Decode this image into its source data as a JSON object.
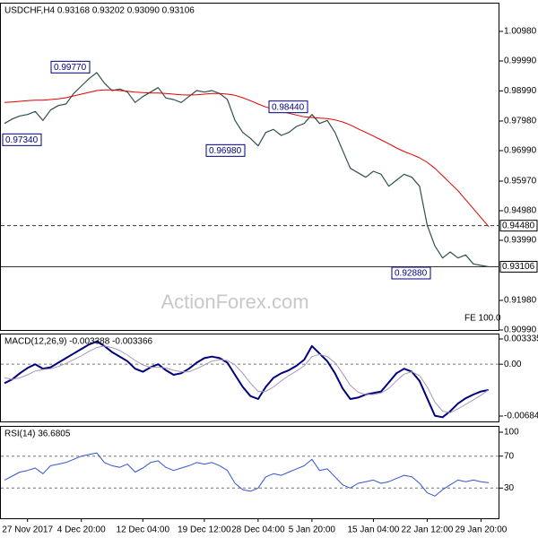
{
  "chart_data": [
    {
      "type": "line",
      "title": "USDCHF,H4  0.93168 0.93202 0.93090 0.93106",
      "categories": [
        null,
        null,
        null,
        "27 Nov 2017",
        null,
        null,
        null,
        null,
        null,
        null,
        "4 Dec 20:00",
        null,
        null,
        null,
        null,
        null,
        null,
        null,
        "12 Dec 04:00",
        null,
        null,
        null,
        null,
        null,
        null,
        null,
        "19 Dec 12:00",
        null,
        null,
        null,
        null,
        null,
        null,
        "28 Dec 04:00",
        null,
        null,
        null,
        null,
        null,
        null,
        "5 Jan 20:00",
        null,
        null,
        null,
        null,
        null,
        null,
        null,
        "15 Jan 04:00",
        null,
        null,
        null,
        null,
        null,
        null,
        "22 Jan 12:00",
        null,
        null,
        null,
        null,
        null,
        null,
        "29 Jan 20:00",
        null
      ],
      "series": [
        {
          "color": "#2f4f4f",
          "width": 1.2,
          "values": [
            0.979,
            0.9805,
            0.9815,
            0.982,
            0.983,
            0.98,
            0.9835,
            0.985,
            0.9855,
            0.989,
            0.9915,
            0.994,
            0.996,
            0.9925,
            0.99,
            0.9905,
            0.9895,
            0.986,
            0.988,
            0.9895,
            0.991,
            0.9875,
            0.987,
            0.986,
            0.988,
            0.99,
            0.9895,
            0.99,
            0.989,
            0.987,
            0.98,
            0.976,
            0.974,
            0.9715,
            0.976,
            0.977,
            0.975,
            0.976,
            0.978,
            0.979,
            0.982,
            0.979,
            0.98,
            0.976,
            0.97,
            0.964,
            0.9625,
            0.961,
            0.963,
            0.962,
            0.958,
            0.96,
            0.962,
            0.961,
            0.958,
            0.945,
            0.938,
            0.934,
            0.936,
            0.934,
            0.935,
            0.932,
            0.9315,
            0.93106
          ]
        },
        {
          "color": "#e00000",
          "width": 1,
          "values": [
            0.986,
            0.9862,
            0.9864,
            0.9866,
            0.9868,
            0.9868,
            0.987,
            0.9872,
            0.9876,
            0.9882,
            0.9888,
            0.9894,
            0.99,
            0.9902,
            0.9902,
            0.99,
            0.9898,
            0.9895,
            0.9893,
            0.9892,
            0.9892,
            0.989,
            0.9888,
            0.9886,
            0.9885,
            0.9886,
            0.9888,
            0.989,
            0.989,
            0.9888,
            0.9884,
            0.9876,
            0.9866,
            0.9855,
            0.9845,
            0.9838,
            0.983,
            0.9824,
            0.9818,
            0.9812,
            0.981,
            0.9808,
            0.9806,
            0.9802,
            0.9795,
            0.9785,
            0.9772,
            0.976,
            0.9748,
            0.9735,
            0.9722,
            0.9708,
            0.9696,
            0.9686,
            0.9675,
            0.966,
            0.964,
            0.9615,
            0.959,
            0.9565,
            0.9535,
            0.9505,
            0.9475,
            0.9445
          ]
        }
      ],
      "ylim": [
        0.9099,
        1.0194
      ],
      "yticks": [
        {
          "value": 1.0098,
          "label": "1.00980"
        },
        {
          "value": 0.9999,
          "label": "0.99990"
        },
        {
          "value": 0.9899,
          "label": "0.98990"
        },
        {
          "value": 0.9798,
          "label": "0.97980"
        },
        {
          "value": 0.9699,
          "label": "0.96990"
        },
        {
          "value": 0.9597,
          "label": "0.95970"
        },
        {
          "value": 0.9498,
          "label": "0.94980"
        },
        {
          "value": 0.9399,
          "label": "0.93990"
        },
        {
          "value": 0.9198,
          "label": "0.91980"
        },
        {
          "value": 0.9099,
          "label": "0.90990"
        }
      ],
      "grid": false,
      "hlines": [
        {
          "value": 0.9448,
          "label": "0.94480",
          "style": "dashed"
        },
        {
          "value": 0.93106,
          "label": "0.93106",
          "style": "solid"
        }
      ],
      "annotations": [
        {
          "value": 0.9734,
          "label": "0.97340"
        },
        {
          "value": 0.9977,
          "label": "0.99770"
        },
        {
          "value": 0.9698,
          "label": "0.96980"
        },
        {
          "value": 0.9844,
          "label": "0.98440"
        },
        {
          "value": 0.9288,
          "label": "0.92880"
        }
      ],
      "note": "FE 100.0",
      "watermark": "ActionForex.com"
    },
    {
      "type": "line",
      "title": "MACD(12,26,9) -0.003388 -0.003366",
      "series": [
        {
          "color": "#000080",
          "width": 2,
          "values": [
            -0.0025,
            -0.002,
            -0.0012,
            -0.0005,
            0.0,
            -0.0006,
            -0.0004,
            0.0002,
            0.0008,
            0.0014,
            0.002,
            0.0026,
            0.003,
            0.0024,
            0.0016,
            0.001,
            0.0004,
            -0.0006,
            -0.001,
            -0.0004,
            0.0,
            -0.0008,
            -0.0014,
            -0.0012,
            -0.0006,
            0.0002,
            0.0008,
            0.001,
            0.0008,
            0.0002,
            -0.0014,
            -0.003,
            -0.0042,
            -0.0046,
            -0.003,
            -0.0018,
            -0.0012,
            -0.0008,
            -0.0002,
            0.0006,
            0.0024,
            0.0014,
            0.0004,
            -0.0012,
            -0.0032,
            -0.0046,
            -0.0044,
            -0.004,
            -0.0038,
            -0.0036,
            -0.0024,
            -0.0012,
            -0.0006,
            -0.001,
            -0.0022,
            -0.0045,
            -0.0068,
            -0.007,
            -0.0062,
            -0.0052,
            -0.0045,
            -0.004,
            -0.0036,
            -0.003388
          ]
        },
        {
          "color": "#a898b8",
          "width": 1,
          "values": [
            -0.0018,
            -0.002,
            -0.0018,
            -0.0014,
            -0.0009,
            -0.0007,
            -0.0006,
            -0.0003,
            0.0001,
            0.0006,
            0.0011,
            0.0017,
            0.0022,
            0.0024,
            0.0022,
            0.0018,
            0.0012,
            0.0005,
            -0.0001,
            -0.0004,
            -0.0004,
            -0.0005,
            -0.0008,
            -0.001,
            -0.001,
            -0.0006,
            -0.0001,
            0.0004,
            0.0006,
            0.0005,
            -0.0001,
            -0.0012,
            -0.0025,
            -0.0036,
            -0.0036,
            -0.003,
            -0.0022,
            -0.0015,
            -0.0009,
            -0.0002,
            0.001,
            0.0013,
            0.001,
            0.0002,
            -0.0012,
            -0.0028,
            -0.0037,
            -0.004,
            -0.004,
            -0.0038,
            -0.0032,
            -0.0022,
            -0.0013,
            -0.001,
            -0.0015,
            -0.003,
            -0.005,
            -0.0062,
            -0.0064,
            -0.0059,
            -0.0053,
            -0.0047,
            -0.0041,
            -0.003366
          ]
        }
      ],
      "ylim": [
        -0.006843,
        0.003335
      ],
      "yticks": [
        0.003335,
        {
          "value": 0,
          "label": "0.00"
        },
        -0.006843
      ],
      "grid": true
    },
    {
      "type": "line",
      "title": "RSI(14) 36.6805",
      "series": [
        {
          "color": "#3355cc",
          "width": 1,
          "values": [
            40,
            45,
            50,
            52,
            55,
            48,
            58,
            60,
            62,
            66,
            70,
            72,
            74,
            62,
            58,
            56,
            60,
            50,
            55,
            62,
            64,
            56,
            52,
            55,
            58,
            62,
            60,
            62,
            58,
            52,
            36,
            28,
            26,
            30,
            44,
            48,
            46,
            50,
            54,
            58,
            66,
            52,
            54,
            44,
            34,
            30,
            36,
            38,
            40,
            36,
            38,
            42,
            46,
            44,
            36,
            24,
            20,
            28,
            34,
            40,
            38,
            40,
            38,
            36.6805
          ]
        }
      ],
      "ylim": [
        0,
        100
      ],
      "yticks": [
        100,
        70,
        30
      ],
      "grid": true
    }
  ]
}
